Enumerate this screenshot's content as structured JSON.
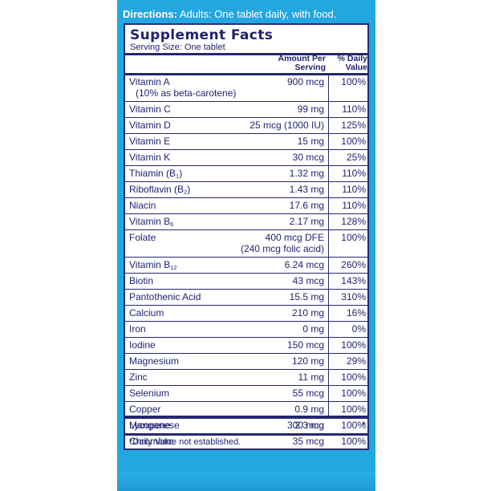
{
  "directions": {
    "label": "Directions:",
    "text": "Adults:  One tablet daily, with food."
  },
  "facts": {
    "title": "Supplement Facts",
    "serving_size": "Serving Size: One tablet",
    "col_amount": [
      "Amount Per",
      "Serving"
    ],
    "col_dv": [
      "% Daily",
      "Value"
    ],
    "rows": [
      {
        "name": "Vitamin A",
        "name2": "(10% as beta-carotene)",
        "amount": "900 mcg",
        "dv": "100%"
      },
      {
        "name": "Vitamin C",
        "amount": "99 mg",
        "dv": "110%"
      },
      {
        "name": "Vitamin D",
        "amount": "25 mcg (1000 IU)",
        "dv": "125%"
      },
      {
        "name": "Vitamin E",
        "amount": "15 mg",
        "dv": "100%"
      },
      {
        "name": "Vitamin K",
        "amount": "30 mcg",
        "dv": "25%"
      },
      {
        "name": "Thiamin (B",
        "sub": "1",
        "suffix": ")",
        "amount": "1.32 mg",
        "dv": "110%"
      },
      {
        "name": "Riboflavin (B",
        "sub": "2",
        "suffix": ")",
        "amount": "1.43 mg",
        "dv": "110%"
      },
      {
        "name": "Niacin",
        "amount": "17.6 mg",
        "dv": "110%"
      },
      {
        "name": "Vitamin B",
        "sub": "6",
        "amount": "2.17 mg",
        "dv": "128%"
      },
      {
        "name": "Folate",
        "amount": "400 mcg DFE",
        "amount2": "(240 mcg folic acid)",
        "dv": "100%"
      },
      {
        "name": "Vitamin B",
        "sub": "12",
        "amount": "6.24 mcg",
        "dv": "260%"
      },
      {
        "name": "Biotin",
        "amount": "43 mcg",
        "dv": "143%"
      },
      {
        "name": "Pantothenic Acid",
        "amount": "15.5 mg",
        "dv": "310%"
      },
      {
        "name": "Calcium",
        "amount": "210 mg",
        "dv": "16%"
      },
      {
        "name": "Iron",
        "amount": "0 mg",
        "dv": "0%"
      },
      {
        "name": "Iodine",
        "amount": "150 mcg",
        "dv": "100%"
      },
      {
        "name": "Magnesium",
        "amount": "120 mg",
        "dv": "29%"
      },
      {
        "name": "Zinc",
        "amount": "11 mg",
        "dv": "100%"
      },
      {
        "name": "Selenium",
        "amount": "55 mcg",
        "dv": "100%"
      },
      {
        "name": "Copper",
        "amount": "0.9 mg",
        "dv": "100%"
      },
      {
        "name": "Manganese",
        "amount": "2.3 mg",
        "dv": "100%"
      },
      {
        "name": "Chromium",
        "amount": "35 mcg",
        "dv": "100%"
      }
    ],
    "extra_row": {
      "name": "Lycopene",
      "amount": "300 mcg",
      "dv": "*"
    },
    "footnote": "*Daily Value not established."
  },
  "colors": {
    "panel_blue": "#22a7e0",
    "label_navy": "#23286f",
    "text_navy": "#1f2370"
  }
}
